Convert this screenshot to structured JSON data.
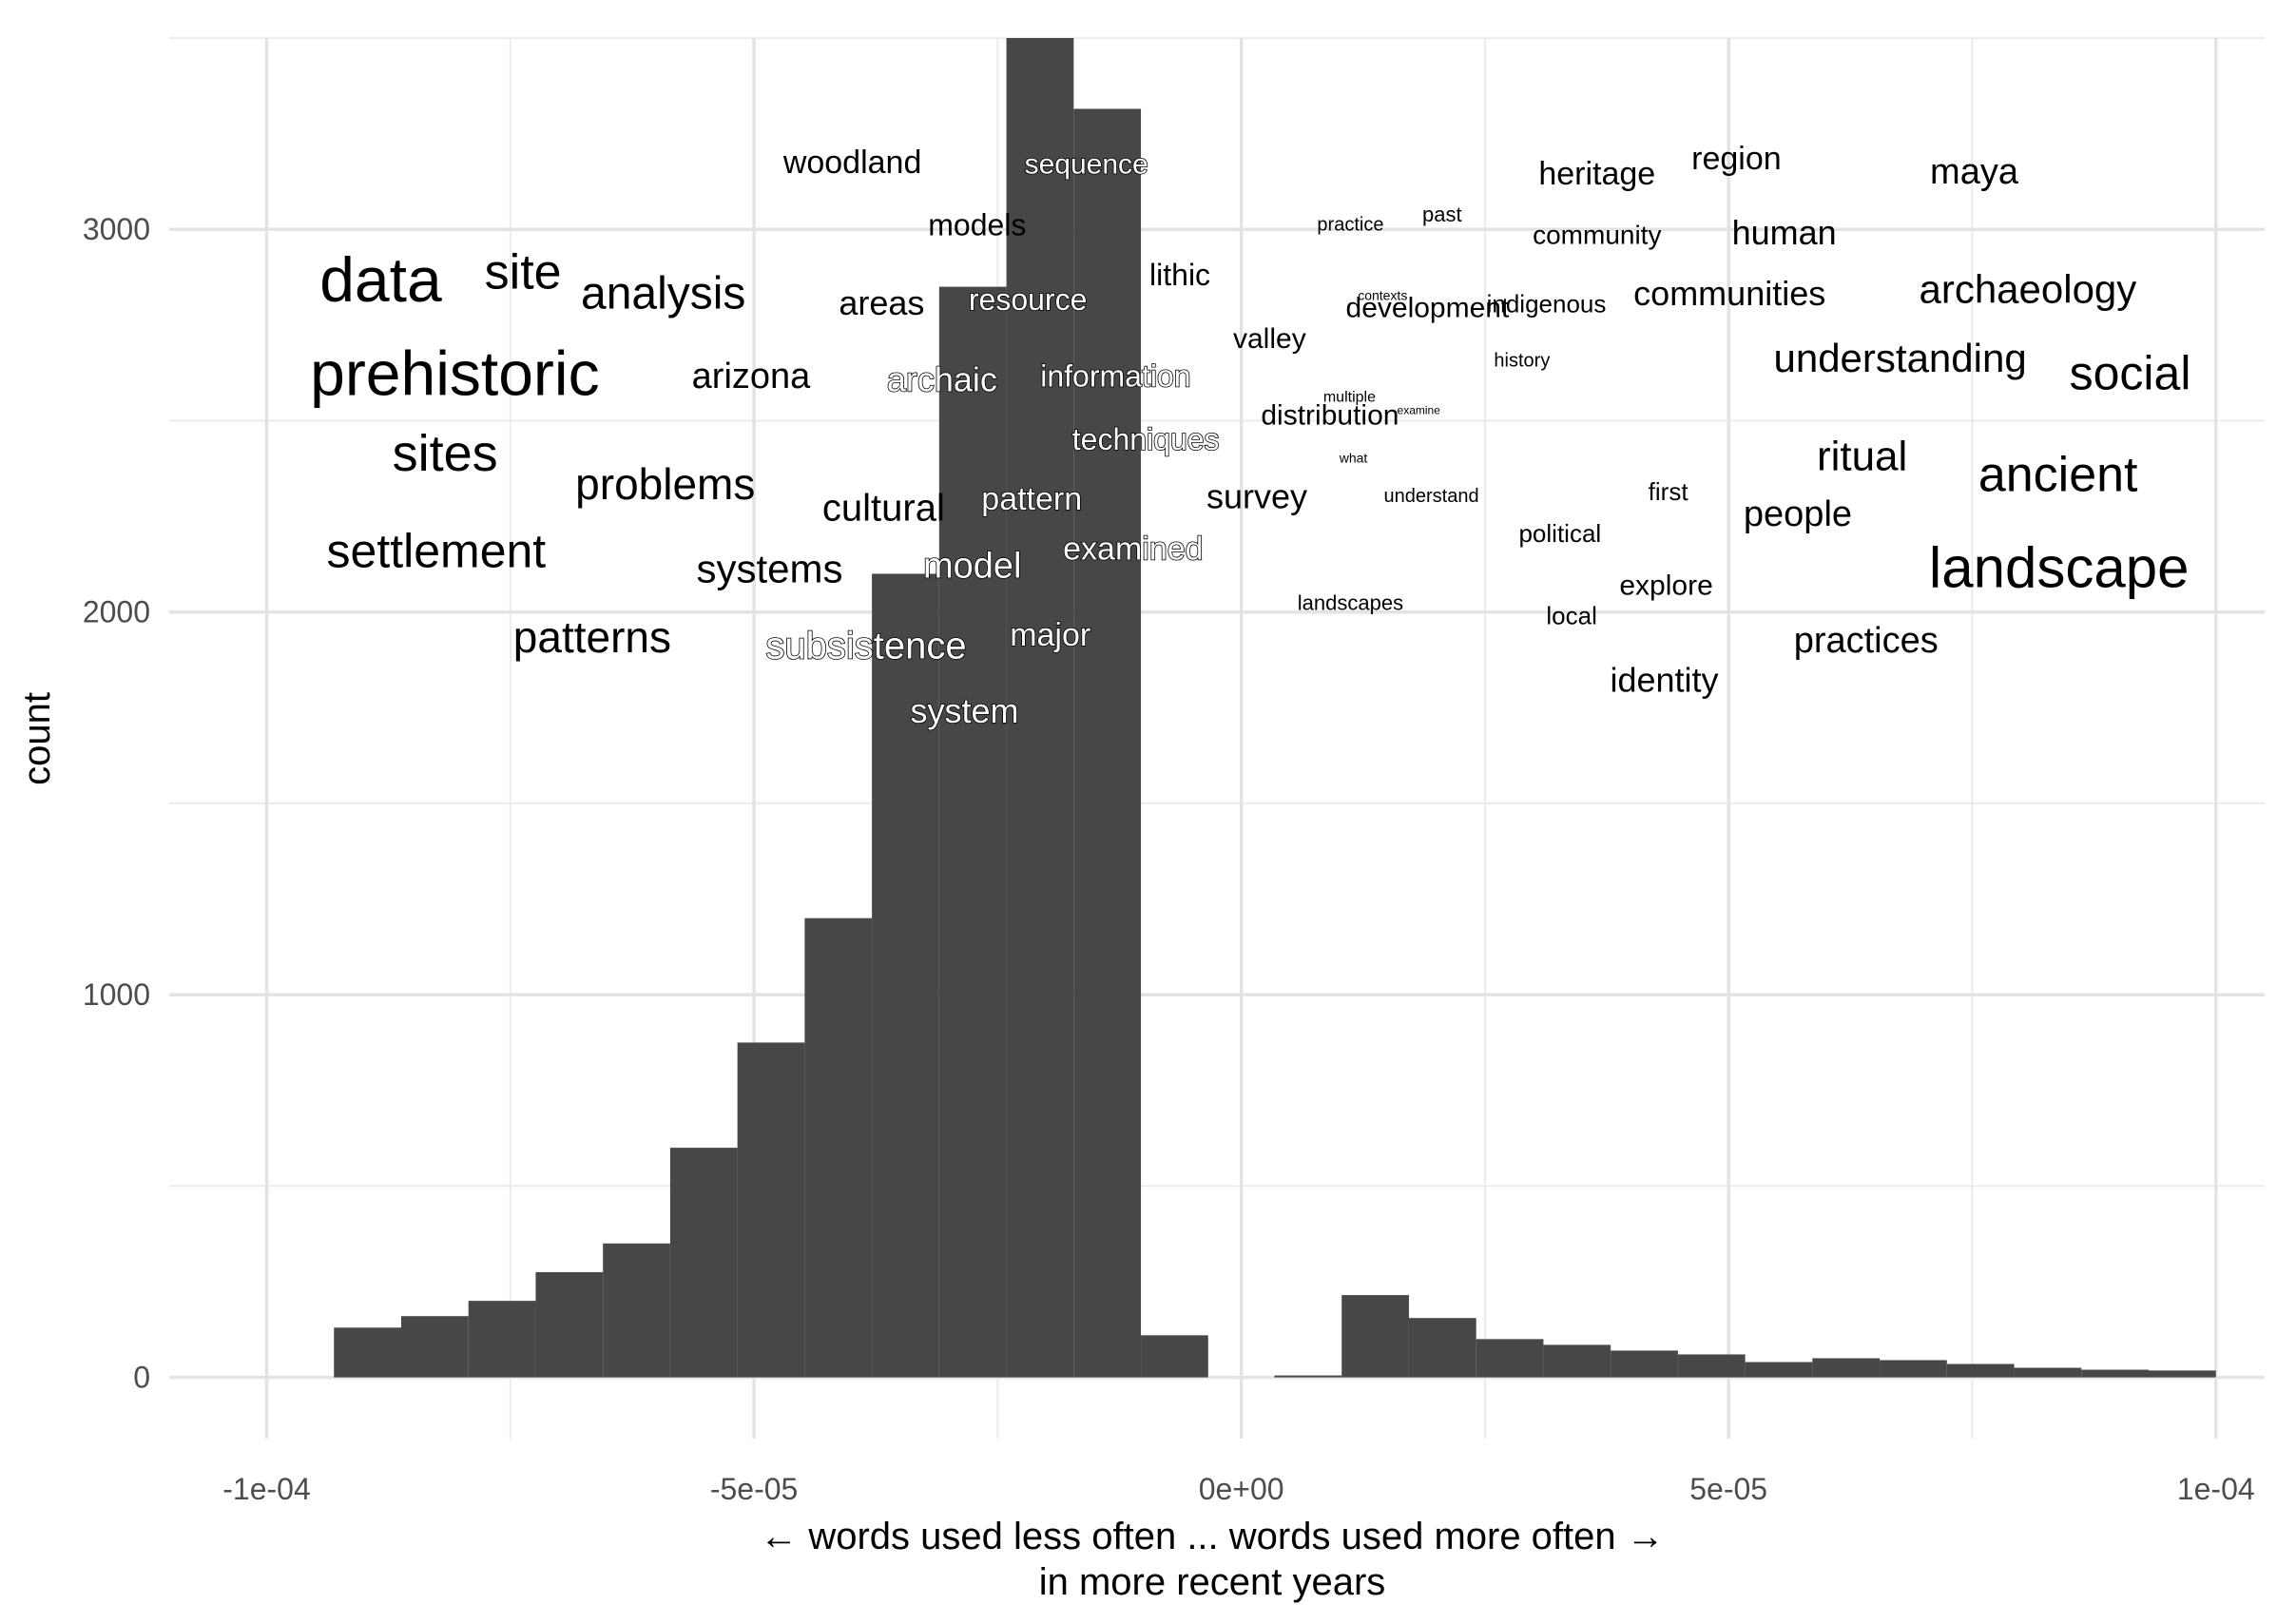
{
  "chart_data": {
    "type": "bar",
    "subtype": "histogram_with_word_annotations",
    "xlabel": "← words used less often ... words used more often →",
    "xlabel_line2": "in more recent years",
    "ylabel": "count",
    "xlim": [
      -0.00011,
      0.000105
    ],
    "ylim": [
      -160,
      3500
    ],
    "grid": true,
    "bar_color": "#474747",
    "x_ticks": [
      {
        "value": -0.0001,
        "label": "-1e-04"
      },
      {
        "value": -5e-05,
        "label": "-5e-05"
      },
      {
        "value": 0,
        "label": "0e+00"
      },
      {
        "value": 5e-05,
        "label": "5e-05"
      },
      {
        "value": 0.0001,
        "label": "1e-04"
      }
    ],
    "y_ticks": [
      {
        "value": 0,
        "label": "0"
      },
      {
        "value": 1000,
        "label": "1000"
      },
      {
        "value": 2000,
        "label": "2000"
      },
      {
        "value": 3000,
        "label": "3000"
      }
    ],
    "bins": [
      {
        "x0": -9.31e-05,
        "x1": -8.62e-05,
        "count": 130
      },
      {
        "x0": -8.62e-05,
        "x1": -7.93e-05,
        "count": 160
      },
      {
        "x0": -7.93e-05,
        "x1": -7.24e-05,
        "count": 200
      },
      {
        "x0": -7.24e-05,
        "x1": -6.55e-05,
        "count": 275
      },
      {
        "x0": -6.55e-05,
        "x1": -5.86e-05,
        "count": 350
      },
      {
        "x0": -5.86e-05,
        "x1": -5.17e-05,
        "count": 600
      },
      {
        "x0": -5.17e-05,
        "x1": -4.48e-05,
        "count": 875
      },
      {
        "x0": -4.48e-05,
        "x1": -3.79e-05,
        "count": 1200
      },
      {
        "x0": -3.79e-05,
        "x1": -3.1e-05,
        "count": 2100
      },
      {
        "x0": -3.1e-05,
        "x1": -2.41e-05,
        "count": 2850
      },
      {
        "x0": -2.41e-05,
        "x1": -1.72e-05,
        "count": 3500
      },
      {
        "x0": -1.72e-05,
        "x1": -1.03e-05,
        "count": 3315
      },
      {
        "x0": -1.03e-05,
        "x1": -3.4e-06,
        "count": 110
      },
      {
        "x0": -3.4e-06,
        "x1": 3.4e-06,
        "count": 0
      },
      {
        "x0": 3.4e-06,
        "x1": 1.03e-05,
        "count": 5
      },
      {
        "x0": 1.03e-05,
        "x1": 1.72e-05,
        "count": 215
      },
      {
        "x0": 1.72e-05,
        "x1": 2.41e-05,
        "count": 155
      },
      {
        "x0": 2.41e-05,
        "x1": 3.1e-05,
        "count": 100
      },
      {
        "x0": 3.1e-05,
        "x1": 3.79e-05,
        "count": 85
      },
      {
        "x0": 3.79e-05,
        "x1": 4.48e-05,
        "count": 70
      },
      {
        "x0": 4.48e-05,
        "x1": 5.17e-05,
        "count": 60
      },
      {
        "x0": 5.17e-05,
        "x1": 5.86e-05,
        "count": 40
      },
      {
        "x0": 5.86e-05,
        "x1": 6.55e-05,
        "count": 50
      },
      {
        "x0": 6.55e-05,
        "x1": 7.24e-05,
        "count": 45
      },
      {
        "x0": 7.24e-05,
        "x1": 7.93e-05,
        "count": 35
      },
      {
        "x0": 7.93e-05,
        "x1": 8.62e-05,
        "count": 25
      },
      {
        "x0": 8.62e-05,
        "x1": 9.31e-05,
        "count": 20
      },
      {
        "x0": 9.31e-05,
        "x1": 0.0001,
        "count": 18
      }
    ],
    "words": [
      {
        "text": "data",
        "x": -8.83e-05,
        "y": 2855,
        "size": 66,
        "on_bar": false
      },
      {
        "text": "site",
        "x": -7.37e-05,
        "y": 2880,
        "size": 52,
        "on_bar": false
      },
      {
        "text": "analysis",
        "x": -5.93e-05,
        "y": 2825,
        "size": 48,
        "on_bar": false
      },
      {
        "text": "prehistoric",
        "x": -8.07e-05,
        "y": 2610,
        "size": 66,
        "on_bar": false
      },
      {
        "text": "sites",
        "x": -8.17e-05,
        "y": 2405,
        "size": 54,
        "on_bar": false
      },
      {
        "text": "problems",
        "x": -5.91e-05,
        "y": 2325,
        "size": 46,
        "on_bar": false
      },
      {
        "text": "settlement",
        "x": -8.26e-05,
        "y": 2150,
        "size": 50,
        "on_bar": false
      },
      {
        "text": "patterns",
        "x": -6.66e-05,
        "y": 1925,
        "size": 46,
        "on_bar": false
      },
      {
        "text": "woodland",
        "x": -3.99e-05,
        "y": 3170,
        "size": 34,
        "on_bar": false
      },
      {
        "text": "sequence",
        "x": -1.59e-05,
        "y": 3165,
        "size": 30,
        "on_bar": true
      },
      {
        "text": "models",
        "x": -2.71e-05,
        "y": 3005,
        "size": 32,
        "on_bar": false
      },
      {
        "text": "lithic",
        "x": -6.3e-06,
        "y": 2875,
        "size": 32,
        "on_bar": false
      },
      {
        "text": "areas",
        "x": -3.69e-05,
        "y": 2800,
        "size": 36,
        "on_bar": false
      },
      {
        "text": "resource",
        "x": -2.19e-05,
        "y": 2810,
        "size": 32,
        "on_bar": true
      },
      {
        "text": "arizona",
        "x": -5.03e-05,
        "y": 2610,
        "size": 38,
        "on_bar": false
      },
      {
        "text": "archaic",
        "x": -3.07e-05,
        "y": 2600,
        "size": 36,
        "on_bar": true
      },
      {
        "text": "information",
        "x": -1.29e-05,
        "y": 2610,
        "size": 32,
        "on_bar": true
      },
      {
        "text": "techniques",
        "x": -9.8e-06,
        "y": 2445,
        "size": 32,
        "on_bar": true
      },
      {
        "text": "cultural",
        "x": -3.67e-05,
        "y": 2265,
        "size": 40,
        "on_bar": false
      },
      {
        "text": "pattern",
        "x": -2.15e-05,
        "y": 2290,
        "size": 34,
        "on_bar": true
      },
      {
        "text": "systems",
        "x": -4.84e-05,
        "y": 2105,
        "size": 42,
        "on_bar": false
      },
      {
        "text": "model",
        "x": -2.76e-05,
        "y": 2115,
        "size": 38,
        "on_bar": true
      },
      {
        "text": "examined",
        "x": -1.11e-05,
        "y": 2160,
        "size": 34,
        "on_bar": true
      },
      {
        "text": "subsistence",
        "x": -3.85e-05,
        "y": 1905,
        "size": 40,
        "on_bar": true
      },
      {
        "text": "major",
        "x": -1.96e-05,
        "y": 1935,
        "size": 34,
        "on_bar": true
      },
      {
        "text": "system",
        "x": -2.84e-05,
        "y": 1735,
        "size": 36,
        "on_bar": true
      },
      {
        "text": "valley",
        "x": 2.9e-06,
        "y": 2710,
        "size": 30,
        "on_bar": false
      },
      {
        "text": "survey",
        "x": 1.6e-06,
        "y": 2295,
        "size": 36,
        "on_bar": false
      },
      {
        "text": "distribution",
        "x": 9.1e-06,
        "y": 2510,
        "size": 30,
        "on_bar": false
      },
      {
        "text": "practice",
        "x": 1.12e-05,
        "y": 3010,
        "size": 20,
        "on_bar": false
      },
      {
        "text": "past",
        "x": 2.06e-05,
        "y": 3035,
        "size": 22,
        "on_bar": false
      },
      {
        "text": "heritage",
        "x": 3.65e-05,
        "y": 3140,
        "size": 34,
        "on_bar": false
      },
      {
        "text": "region",
        "x": 5.08e-05,
        "y": 3180,
        "size": 34,
        "on_bar": false
      },
      {
        "text": "maya",
        "x": 7.52e-05,
        "y": 3145,
        "size": 38,
        "on_bar": false
      },
      {
        "text": "community",
        "x": 3.65e-05,
        "y": 2980,
        "size": 28,
        "on_bar": false
      },
      {
        "text": "human",
        "x": 5.57e-05,
        "y": 2985,
        "size": 36,
        "on_bar": false
      },
      {
        "text": "contexts",
        "x": 1.45e-05,
        "y": 2825,
        "size": 14,
        "on_bar": false
      },
      {
        "text": "development",
        "x": 1.91e-05,
        "y": 2790,
        "size": 30,
        "on_bar": false
      },
      {
        "text": "indigenous",
        "x": 3.13e-05,
        "y": 2800,
        "size": 26,
        "on_bar": false
      },
      {
        "text": "communities",
        "x": 5.01e-05,
        "y": 2825,
        "size": 36,
        "on_bar": false
      },
      {
        "text": "archaeology",
        "x": 8.07e-05,
        "y": 2835,
        "size": 42,
        "on_bar": false
      },
      {
        "text": "history",
        "x": 2.88e-05,
        "y": 2655,
        "size": 20,
        "on_bar": false
      },
      {
        "text": "understanding",
        "x": 6.76e-05,
        "y": 2655,
        "size": 42,
        "on_bar": false
      },
      {
        "text": "social",
        "x": 9.12e-05,
        "y": 2615,
        "size": 50,
        "on_bar": false
      },
      {
        "text": "multiple",
        "x": 1.11e-05,
        "y": 2560,
        "size": 16,
        "on_bar": false
      },
      {
        "text": "examine",
        "x": 1.82e-05,
        "y": 2525,
        "size": 12,
        "on_bar": false
      },
      {
        "text": "what",
        "x": 1.15e-05,
        "y": 2400,
        "size": 14,
        "on_bar": false
      },
      {
        "text": "understand",
        "x": 1.95e-05,
        "y": 2300,
        "size": 20,
        "on_bar": false
      },
      {
        "text": "ritual",
        "x": 6.37e-05,
        "y": 2400,
        "size": 44,
        "on_bar": false
      },
      {
        "text": "ancient",
        "x": 8.38e-05,
        "y": 2350,
        "size": 52,
        "on_bar": false
      },
      {
        "text": "first",
        "x": 4.38e-05,
        "y": 2310,
        "size": 26,
        "on_bar": false
      },
      {
        "text": "people",
        "x": 5.71e-05,
        "y": 2250,
        "size": 38,
        "on_bar": false
      },
      {
        "text": "political",
        "x": 3.27e-05,
        "y": 2200,
        "size": 26,
        "on_bar": false
      },
      {
        "text": "landscape",
        "x": 8.39e-05,
        "y": 2105,
        "size": 60,
        "on_bar": false
      },
      {
        "text": "explore",
        "x": 4.36e-05,
        "y": 2065,
        "size": 30,
        "on_bar": false
      },
      {
        "text": "landscapes",
        "x": 1.12e-05,
        "y": 2020,
        "size": 22,
        "on_bar": false
      },
      {
        "text": "local",
        "x": 3.39e-05,
        "y": 1985,
        "size": 26,
        "on_bar": false
      },
      {
        "text": "practices",
        "x": 6.41e-05,
        "y": 1920,
        "size": 38,
        "on_bar": false
      },
      {
        "text": "identity",
        "x": 4.34e-05,
        "y": 1815,
        "size": 36,
        "on_bar": false
      }
    ]
  }
}
